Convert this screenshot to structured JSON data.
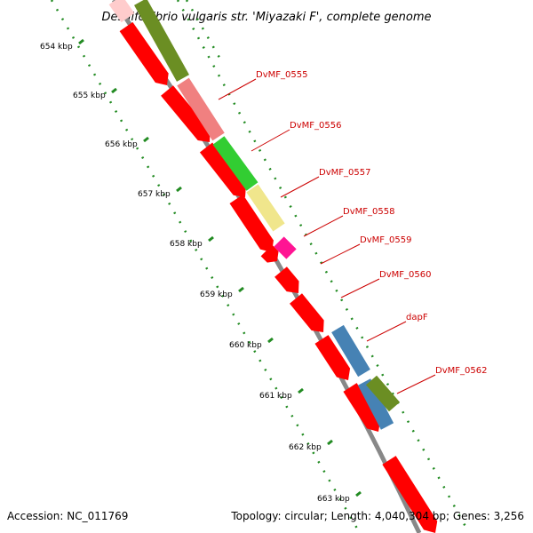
{
  "title": "Desulfovibrio vulgaris str. 'Miyazaki F', complete genome",
  "footer": {
    "accession": "Accession: NC_011769",
    "topology": "Topology: circular; Length: 4,040,304 bp; Genes: 3,256"
  },
  "colors": {
    "cds_red": "#ff0000",
    "backbone": "#808080",
    "tick_green": "#228b22",
    "label_red": "#cc0000",
    "olive": "#6b8e23",
    "salmon": "#f08080",
    "green": "#32cd32",
    "khaki": "#f0e68c",
    "magenta": "#ff1493",
    "steelblue": "#4682b4"
  },
  "kbp_ticks": [
    "654 kbp",
    "655 kbp",
    "656 kbp",
    "657 kbp",
    "658 kbp",
    "659 kbp",
    "660 kbp",
    "661 kbp",
    "662 kbp",
    "663 kbp"
  ],
  "gene_labels": [
    "DvMF_0555",
    "DvMF_0556",
    "DvMF_0557",
    "DvMF_0558",
    "DvMF_0559",
    "DvMF_0560",
    "dapF",
    "DvMF_0562"
  ]
}
